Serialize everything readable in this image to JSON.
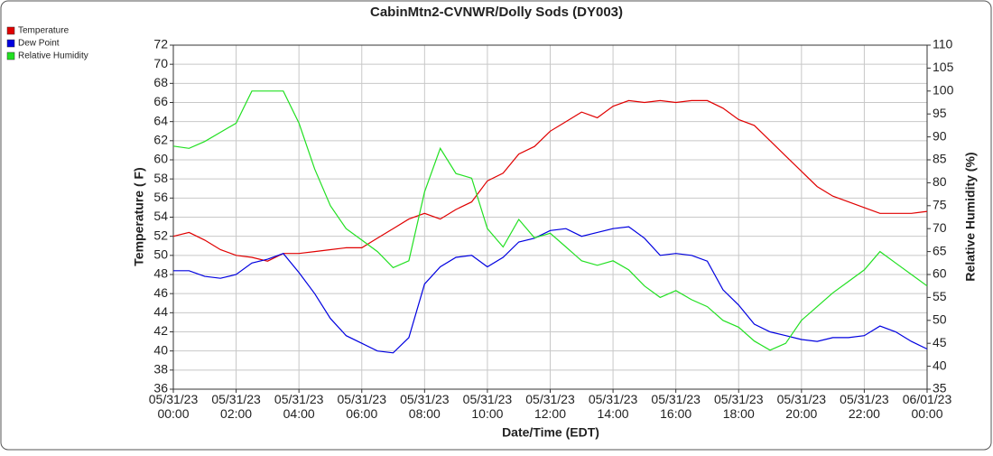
{
  "chart_data": {
    "type": "line",
    "title": "CabinMtn2-CVNWR/Dolly Sods (DY003)",
    "x_label": "Date/Time (EDT)",
    "y_label": "Temperature ( F)",
    "y2_label": "Relative Humidity (%)",
    "grid": true,
    "legend": "top-left",
    "x": [
      "05/31/23 00:00",
      "05/31/23 00:30",
      "05/31/23 01:00",
      "05/31/23 01:30",
      "05/31/23 02:00",
      "05/31/23 02:30",
      "05/31/23 03:00",
      "05/31/23 03:30",
      "05/31/23 04:00",
      "05/31/23 04:30",
      "05/31/23 05:00",
      "05/31/23 05:30",
      "05/31/23 06:00",
      "05/31/23 06:30",
      "05/31/23 07:00",
      "05/31/23 07:30",
      "05/31/23 08:00",
      "05/31/23 08:30",
      "05/31/23 09:00",
      "05/31/23 09:30",
      "05/31/23 10:00",
      "05/31/23 10:30",
      "05/31/23 11:00",
      "05/31/23 11:30",
      "05/31/23 12:00",
      "05/31/23 12:30",
      "05/31/23 13:00",
      "05/31/23 13:30",
      "05/31/23 14:00",
      "05/31/23 14:30",
      "05/31/23 15:00",
      "05/31/23 15:30",
      "05/31/23 16:00",
      "05/31/23 16:30",
      "05/31/23 17:00",
      "05/31/23 17:30",
      "05/31/23 18:00",
      "05/31/23 18:30",
      "05/31/23 19:00",
      "05/31/23 19:30",
      "05/31/23 20:00",
      "05/31/23 20:30",
      "05/31/23 21:00",
      "05/31/23 21:30",
      "05/31/23 22:00",
      "05/31/23 22:30",
      "05/31/23 23:00",
      "05/31/23 23:30",
      "06/01/23 00:00"
    ],
    "series": [
      {
        "name": "Temperature",
        "color": "#e00000",
        "axis": "y",
        "values": [
          52.0,
          52.4,
          51.6,
          50.6,
          50.0,
          49.8,
          49.4,
          50.2,
          50.2,
          50.4,
          50.6,
          50.8,
          50.8,
          51.8,
          52.8,
          53.8,
          54.4,
          53.8,
          54.8,
          55.6,
          57.8,
          58.6,
          60.6,
          61.4,
          63.0,
          64.0,
          65.0,
          64.4,
          65.6,
          66.2,
          66.0,
          66.2,
          66.0,
          66.2,
          66.2,
          65.4,
          64.2,
          63.6,
          62.0,
          60.4,
          58.8,
          57.2,
          56.2,
          55.6,
          55.0,
          54.4,
          54.4,
          54.4,
          54.6
        ]
      },
      {
        "name": "Dew Point",
        "color": "#0000e0",
        "axis": "y",
        "values": [
          48.4,
          48.4,
          47.8,
          47.6,
          48.0,
          49.2,
          49.6,
          50.2,
          48.2,
          46.0,
          43.4,
          41.6,
          40.8,
          40.0,
          39.8,
          41.4,
          47.0,
          48.8,
          49.8,
          50.0,
          48.8,
          49.8,
          51.4,
          51.8,
          52.6,
          52.8,
          52.0,
          52.4,
          52.8,
          53.0,
          51.8,
          50.0,
          50.2,
          50.0,
          49.4,
          46.4,
          44.8,
          42.8,
          42.0,
          41.6,
          41.2,
          41.0,
          41.4,
          41.4,
          41.6,
          42.6,
          42.0,
          41.0,
          40.2
        ]
      },
      {
        "name": "Relative Humidity",
        "color": "#22e022",
        "axis": "y2",
        "values": [
          88,
          87.5,
          89,
          91,
          93,
          100,
          100,
          100,
          93,
          83,
          75,
          70,
          67.5,
          65,
          61.5,
          63,
          78,
          87.5,
          82,
          81,
          70,
          66,
          72,
          68,
          69,
          66,
          63,
          62,
          63,
          61,
          57.5,
          55,
          56.5,
          54.5,
          53,
          50,
          48.5,
          45.5,
          43.5,
          45,
          50,
          53,
          56,
          58.5,
          61,
          65,
          62.5,
          60,
          57.5
        ]
      }
    ],
    "xlim": [
      "05/31/23 00:00",
      "06/01/23 00:00"
    ],
    "xticks": [
      "05/31/23 00:00",
      "05/31/23 02:00",
      "05/31/23 04:00",
      "05/31/23 06:00",
      "05/31/23 08:00",
      "05/31/23 10:00",
      "05/31/23 12:00",
      "05/31/23 14:00",
      "05/31/23 16:00",
      "05/31/23 18:00",
      "05/31/23 20:00",
      "05/31/23 22:00",
      "06/01/23 00:00"
    ],
    "ylim": [
      36,
      72
    ],
    "yticks": [
      36,
      38,
      40,
      42,
      44,
      46,
      48,
      50,
      52,
      54,
      56,
      58,
      60,
      62,
      64,
      66,
      68,
      70,
      72
    ],
    "y2lim": [
      35,
      110
    ],
    "y2ticks": [
      35,
      40,
      45,
      50,
      55,
      60,
      65,
      70,
      75,
      80,
      85,
      90,
      95,
      100,
      105,
      110
    ]
  }
}
